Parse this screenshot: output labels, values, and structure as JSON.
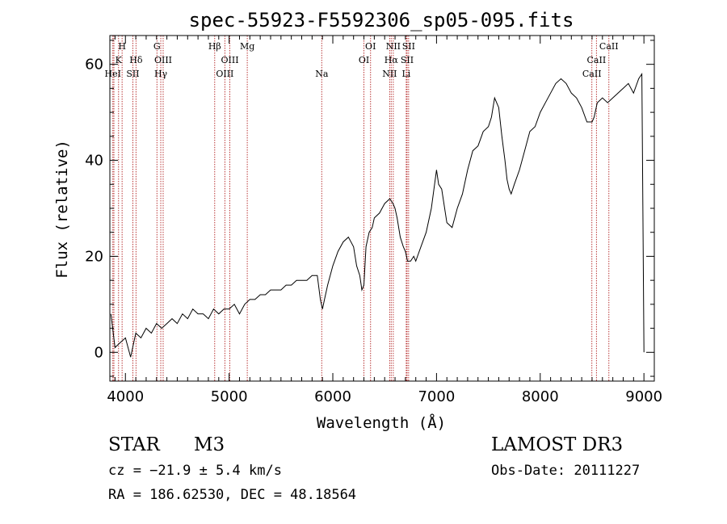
{
  "chart_data": {
    "type": "line",
    "title": "spec-55923-F5592306_sp05-095.fits",
    "xlabel": "Wavelength (Å)",
    "ylabel": "Flux (relative)",
    "xlim": [
      3850,
      9100
    ],
    "ylim": [
      -6,
      66
    ],
    "xticks": [
      4000,
      5000,
      6000,
      7000,
      8000,
      9000
    ],
    "xtick_labels": [
      "4000",
      "5000",
      "6000",
      "7000",
      "8000",
      "9000"
    ],
    "yticks": [
      0,
      20,
      40,
      60
    ],
    "ytick_labels": [
      "0",
      "20",
      "40",
      "60"
    ],
    "line_color": "#000000",
    "marker_color": "#b22222",
    "series": [
      {
        "name": "flux",
        "x": [
          3860,
          3900,
          3950,
          4000,
          4050,
          4100,
          4150,
          4200,
          4250,
          4300,
          4350,
          4400,
          4450,
          4500,
          4550,
          4600,
          4650,
          4700,
          4750,
          4800,
          4850,
          4900,
          4950,
          5000,
          5050,
          5100,
          5150,
          5200,
          5250,
          5300,
          5350,
          5400,
          5450,
          5500,
          5550,
          5600,
          5650,
          5700,
          5750,
          5800,
          5850,
          5880,
          5900,
          5920,
          5950,
          6000,
          6050,
          6100,
          6150,
          6200,
          6230,
          6260,
          6280,
          6300,
          6320,
          6350,
          6380,
          6400,
          6450,
          6500,
          6550,
          6580,
          6600,
          6620,
          6650,
          6680,
          6700,
          6720,
          6750,
          6780,
          6800,
          6850,
          6900,
          6950,
          7000,
          7020,
          7050,
          7100,
          7150,
          7200,
          7250,
          7300,
          7350,
          7400,
          7450,
          7500,
          7530,
          7560,
          7600,
          7630,
          7660,
          7680,
          7700,
          7720,
          7750,
          7800,
          7850,
          7900,
          7950,
          8000,
          8050,
          8100,
          8150,
          8200,
          8250,
          8300,
          8350,
          8400,
          8450,
          8500,
          8520,
          8550,
          8600,
          8650,
          8700,
          8750,
          8800,
          8850,
          8900,
          8950,
          8980,
          9000
        ],
        "values": [
          8,
          1,
          2,
          3,
          -1,
          4,
          3,
          5,
          4,
          6,
          5,
          6,
          7,
          6,
          8,
          7,
          9,
          8,
          8,
          7,
          9,
          8,
          9,
          9,
          10,
          8,
          10,
          11,
          11,
          12,
          12,
          13,
          13,
          13,
          14,
          14,
          15,
          15,
          15,
          16,
          16,
          11,
          9,
          11,
          14,
          18,
          21,
          23,
          24,
          22,
          18,
          16,
          13,
          14,
          22,
          25,
          26,
          28,
          29,
          31,
          32,
          31,
          30,
          28,
          24,
          22,
          21,
          19,
          19,
          20,
          19,
          22,
          25,
          30,
          38,
          35,
          34,
          27,
          26,
          30,
          33,
          38,
          42,
          43,
          46,
          47,
          49,
          53,
          51,
          45,
          40,
          36,
          34,
          33,
          35,
          38,
          42,
          46,
          47,
          50,
          52,
          54,
          56,
          57,
          56,
          54,
          53,
          51,
          48,
          48,
          49,
          52,
          53,
          52,
          53,
          54,
          55,
          56,
          54,
          57,
          58,
          0
        ]
      }
    ],
    "lines": [
      {
        "x": 3879,
        "label": "HeI",
        "row": 3
      },
      {
        "x": 3889,
        "label": "",
        "row": 0
      },
      {
        "x": 3934,
        "label": "K",
        "row": 2
      },
      {
        "x": 3968,
        "label": "H",
        "row": 1
      },
      {
        "x": 4072,
        "label": "SII",
        "row": 3
      },
      {
        "x": 4102,
        "label": "Hδ",
        "row": 2
      },
      {
        "x": 4304,
        "label": "G",
        "row": 1
      },
      {
        "x": 4341,
        "label": "Hγ",
        "row": 3
      },
      {
        "x": 4364,
        "label": "OIII",
        "row": 2
      },
      {
        "x": 4861,
        "label": "Hβ",
        "row": 1
      },
      {
        "x": 4959,
        "label": "OIII",
        "row": 3
      },
      {
        "x": 5007,
        "label": "OIII",
        "row": 2
      },
      {
        "x": 5175,
        "label": "Mg",
        "row": 1
      },
      {
        "x": 5893,
        "label": "Na",
        "row": 3
      },
      {
        "x": 6300,
        "label": "OI",
        "row": 2
      },
      {
        "x": 6364,
        "label": "OI",
        "row": 1
      },
      {
        "x": 6548,
        "label": "NII",
        "row": 3
      },
      {
        "x": 6563,
        "label": "Hα",
        "row": 2
      },
      {
        "x": 6583,
        "label": "NII",
        "row": 1
      },
      {
        "x": 6708,
        "label": "Li",
        "row": 3
      },
      {
        "x": 6716,
        "label": "SII",
        "row": 2
      },
      {
        "x": 6731,
        "label": "SII",
        "row": 1
      },
      {
        "x": 8498,
        "label": "CaII",
        "row": 3
      },
      {
        "x": 8542,
        "label": "CaII",
        "row": 2
      },
      {
        "x": 8662,
        "label": "CaII",
        "row": 1
      }
    ]
  },
  "info": {
    "object_class": "STAR",
    "subclass": "M3",
    "survey": "LAMOST DR3",
    "redshift": "cz = −21.9 ± 5.4 km/s",
    "obs_date": "Obs-Date: 20111227",
    "coords": "RA = 186.62530, DEC =  48.18564"
  }
}
